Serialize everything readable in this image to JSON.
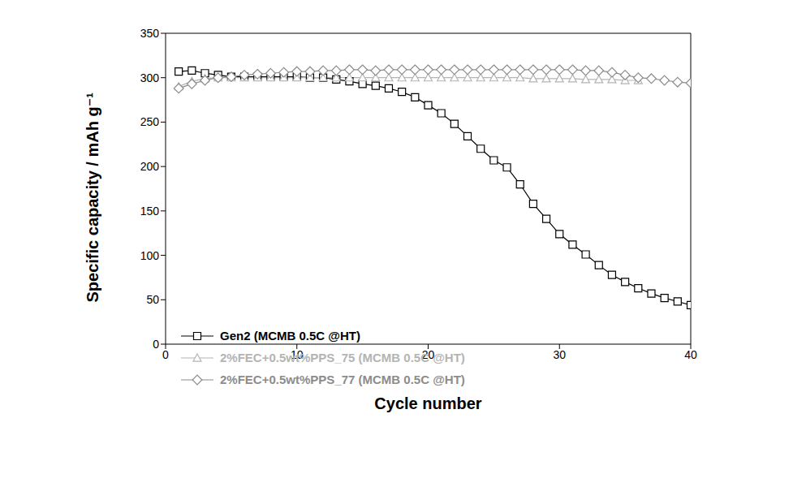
{
  "chart_data": {
    "type": "line",
    "x_label": "Cycle number",
    "y_label": "Specific capacity / mAh g⁻¹",
    "x": [
      1,
      2,
      3,
      4,
      5,
      6,
      7,
      8,
      9,
      10,
      11,
      12,
      13,
      14,
      15,
      16,
      17,
      18,
      19,
      20,
      21,
      22,
      23,
      24,
      25,
      26,
      27,
      28,
      29,
      30,
      31,
      32,
      33,
      34,
      35,
      36,
      37,
      38,
      39,
      40
    ],
    "xlim": [
      0,
      40
    ],
    "xticks": [
      0,
      10,
      20,
      30,
      40
    ],
    "ylim": [
      0,
      350
    ],
    "yticks": [
      0,
      50,
      100,
      150,
      200,
      250,
      300,
      350
    ],
    "grid": false,
    "legend": "lower left",
    "series": [
      {
        "name": "Gen2 (MCMB 0.5C @HT)",
        "color": "#000000",
        "marker": "square",
        "line_style": "solid",
        "values": [
          307,
          308,
          305,
          303,
          301,
          301,
          301,
          301,
          301,
          301,
          300,
          300,
          298,
          296,
          293,
          291,
          288,
          284,
          278,
          269,
          260,
          248,
          234,
          220,
          207,
          199,
          180,
          158,
          141,
          124,
          112,
          101,
          89,
          78,
          70,
          63,
          57,
          52,
          48,
          44
        ]
      },
      {
        "name": "2%FEC+0.5wt%PPS_75 (MCMB 0.5C @HT)",
        "color": "#b4b4b4",
        "marker": "triangle",
        "line_style": "solid",
        "values": [
          290,
          296,
          299,
          300,
          300,
          300,
          300,
          300,
          300,
          300,
          300,
          300,
          300,
          300,
          300,
          300,
          300,
          300,
          300,
          300,
          300,
          300,
          300,
          300,
          300,
          300,
          300,
          299,
          299,
          299,
          299,
          298,
          298,
          298,
          297,
          297,
          null,
          null,
          null,
          null
        ]
      },
      {
        "name": "2%FEC+0.5wt%PPS_77 (MCMB 0.5C @HT)",
        "color": "#8c8c8c",
        "marker": "diamond",
        "line_style": "solid",
        "values": [
          288,
          293,
          297,
          300,
          301,
          303,
          304,
          305,
          306,
          307,
          307,
          308,
          308,
          309,
          309,
          308,
          309,
          309,
          309,
          309,
          309,
          309,
          309,
          309,
          309,
          309,
          309,
          309,
          309,
          309,
          309,
          308,
          308,
          306,
          303,
          300,
          299,
          297,
          295,
          294
        ]
      }
    ]
  }
}
